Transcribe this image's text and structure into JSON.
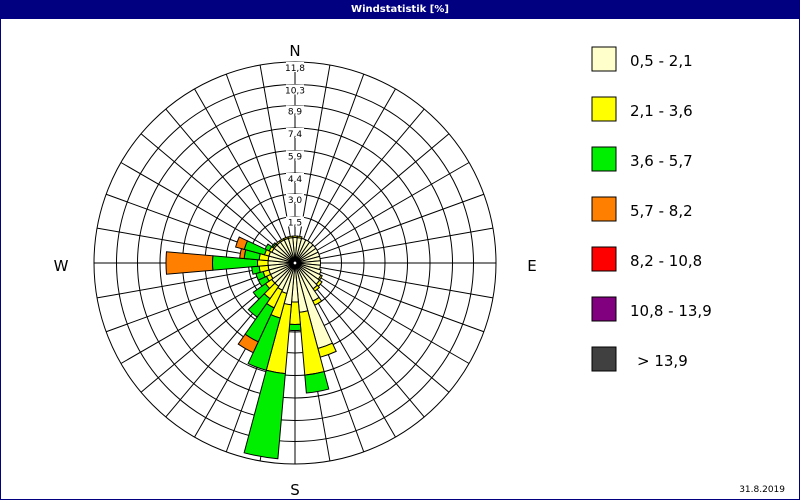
{
  "window": {
    "title": "Windstatistik [%]",
    "date": "31.8.2019"
  },
  "chart_data": {
    "type": "wind-rose",
    "title": "Windstatistik [%]",
    "unit": "%",
    "compass": {
      "north": "N",
      "east": "E",
      "south": "S",
      "west": "W"
    },
    "ring_labels": [
      "1,5",
      "3,0",
      "4,4",
      "5,9",
      "7,4",
      "8,9",
      "10,3",
      "11,8"
    ],
    "ring_values": [
      1.5,
      3.0,
      4.4,
      5.9,
      7.4,
      8.9,
      10.3,
      11.8
    ],
    "max_value": 11.8,
    "sectors": 36,
    "grid": true,
    "legend_placement": "right",
    "legend": [
      {
        "label": "0,5 - 2,1",
        "color": "#FFFFCC"
      },
      {
        "label": "2,1 - 3,6",
        "color": "#FFFF00"
      },
      {
        "label": "3,6 - 5,7",
        "color": "#00EE00"
      },
      {
        "label": "5,7 - 8,2",
        "color": "#FF8000"
      },
      {
        "label": "8,2 - 10,8",
        "color": "#FF0000"
      },
      {
        "label": "10,8 - 13,9",
        "color": "#800080"
      },
      {
        "label": "> 13,9",
        "color": "#404040"
      }
    ],
    "directions": [
      {
        "deg": 0,
        "values": [
          0.1,
          0.1,
          0,
          0,
          0,
          0,
          0
        ]
      },
      {
        "deg": 10,
        "values": [
          0.1,
          0.1,
          0,
          0,
          0,
          0,
          0
        ]
      },
      {
        "deg": 20,
        "values": [
          0.1,
          0,
          0,
          0,
          0,
          0,
          0
        ]
      },
      {
        "deg": 30,
        "values": [
          0.1,
          0,
          0,
          0,
          0,
          0,
          0
        ]
      },
      {
        "deg": 40,
        "values": [
          0.1,
          0,
          0,
          0,
          0,
          0,
          0
        ]
      },
      {
        "deg": 50,
        "values": [
          0.1,
          0,
          0,
          0,
          0,
          0,
          0
        ]
      },
      {
        "deg": 60,
        "values": [
          0.1,
          0,
          0,
          0,
          0,
          0,
          0
        ]
      },
      {
        "deg": 70,
        "values": [
          0.1,
          0,
          0,
          0,
          0,
          0,
          0
        ]
      },
      {
        "deg": 80,
        "values": [
          0.1,
          0,
          0,
          0,
          0,
          0,
          0
        ]
      },
      {
        "deg": 90,
        "values": [
          0.1,
          0,
          0,
          0,
          0,
          0,
          0
        ]
      },
      {
        "deg": 100,
        "values": [
          0.1,
          0,
          0,
          0,
          0,
          0,
          0
        ]
      },
      {
        "deg": 110,
        "values": [
          0.2,
          0,
          0,
          0,
          0,
          0,
          0
        ]
      },
      {
        "deg": 120,
        "values": [
          0.3,
          0.1,
          0,
          0,
          0,
          0,
          0
        ]
      },
      {
        "deg": 130,
        "values": [
          0.4,
          0.2,
          0,
          0,
          0,
          0,
          0
        ]
      },
      {
        "deg": 140,
        "values": [
          0.5,
          0.2,
          0,
          0,
          0,
          0,
          0
        ]
      },
      {
        "deg": 150,
        "values": [
          1.2,
          0.3,
          0,
          0,
          0,
          0,
          0
        ]
      },
      {
        "deg": 160,
        "values": [
          4.3,
          0.6,
          0,
          0,
          0,
          0,
          0
        ]
      },
      {
        "deg": 170,
        "values": [
          1.7,
          4.2,
          1.2,
          0,
          0,
          0,
          0
        ]
      },
      {
        "deg": 180,
        "values": [
          1.0,
          1.5,
          0.4,
          0,
          0,
          0,
          0
        ]
      },
      {
        "deg": 190,
        "values": [
          1.2,
          4.6,
          5.7,
          0,
          0,
          0,
          0
        ]
      },
      {
        "deg": 200,
        "values": [
          0.5,
          1.7,
          3.6,
          0,
          0,
          0,
          0
        ]
      },
      {
        "deg": 210,
        "values": [
          0.4,
          1.3,
          2.5,
          0.8,
          0,
          0,
          0
        ]
      },
      {
        "deg": 220,
        "values": [
          0.3,
          1.0,
          1.5,
          0,
          0,
          0,
          0
        ]
      },
      {
        "deg": 230,
        "values": [
          0.3,
          0.5,
          1.0,
          0,
          0,
          0,
          0
        ]
      },
      {
        "deg": 240,
        "values": [
          0.2,
          0.3,
          0.6,
          0,
          0,
          0,
          0
        ]
      },
      {
        "deg": 250,
        "values": [
          0.2,
          0.4,
          0.5,
          0,
          0,
          0,
          0
        ]
      },
      {
        "deg": 260,
        "values": [
          0.2,
          0.6,
          0.5,
          0,
          0,
          0,
          0
        ]
      },
      {
        "deg": 270,
        "values": [
          0.2,
          0.7,
          3.0,
          3.1,
          0,
          0,
          0
        ]
      },
      {
        "deg": 280,
        "values": [
          0.2,
          0.6,
          1.0,
          0.3,
          0,
          0,
          0
        ]
      },
      {
        "deg": 290,
        "values": [
          0.2,
          0.3,
          1.4,
          0.6,
          0,
          0,
          0
        ]
      },
      {
        "deg": 300,
        "values": [
          0.1,
          0.2,
          0.3,
          0,
          0,
          0,
          0
        ]
      },
      {
        "deg": 310,
        "values": [
          0.1,
          0.1,
          0.1,
          0,
          0,
          0,
          0
        ]
      },
      {
        "deg": 320,
        "values": [
          0.1,
          0.1,
          0,
          0,
          0,
          0,
          0
        ]
      },
      {
        "deg": 330,
        "values": [
          0.1,
          0.1,
          0,
          0,
          0,
          0,
          0
        ]
      },
      {
        "deg": 340,
        "values": [
          0.1,
          0.1,
          0,
          0,
          0,
          0,
          0
        ]
      },
      {
        "deg": 350,
        "values": [
          0.1,
          0.1,
          0,
          0,
          0,
          0,
          0
        ]
      }
    ]
  }
}
